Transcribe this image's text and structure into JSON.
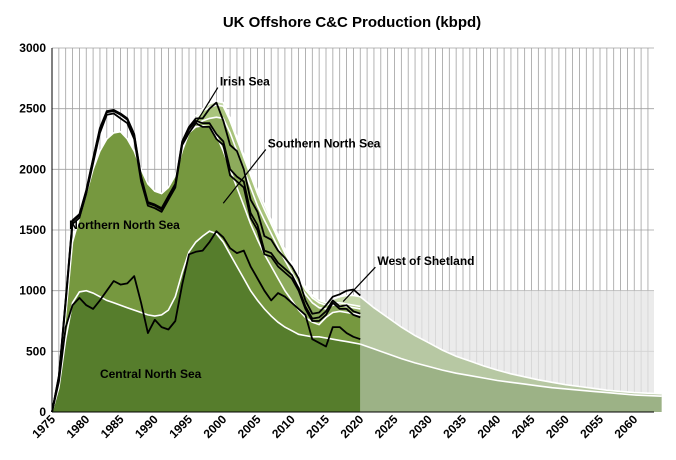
{
  "chart_data": {
    "type": "area",
    "title": "UK Offshore C&C Production (kbpd)",
    "xlabel": "",
    "ylabel": "",
    "xlim": [
      1975,
      2064
    ],
    "ylim": [
      0,
      3000
    ],
    "x_ticks": [
      1975,
      1980,
      1985,
      1990,
      1995,
      2000,
      2005,
      2010,
      2015,
      2020,
      2025,
      2030,
      2035,
      2040,
      2045,
      2050,
      2055,
      2060
    ],
    "y_ticks": [
      0,
      500,
      1000,
      1500,
      2000,
      2500,
      3000
    ],
    "grid": true,
    "forecast_band": {
      "x": [
        2020,
        2064
      ],
      "y": [
        0,
        1000
      ]
    },
    "colors": {
      "central_north_sea": "#567d2c",
      "northern_north_sea": "#76983f",
      "southern_north_sea": "#8dab5c",
      "irish_sea": "#a9c47c",
      "west_of_shetland": "#c5d8a9",
      "forecast_central": "#9cb286",
      "forecast_total": "#b7c8a3",
      "forecast_band": "#e4e4e4",
      "grid": "#a0a0a0"
    },
    "series": [
      {
        "name": "Central North Sea",
        "x": [
          1975,
          1976,
          1977,
          1978,
          1979,
          1980,
          1981,
          1982,
          1983,
          1984,
          1985,
          1986,
          1987,
          1988,
          1989,
          1990,
          1991,
          1992,
          1993,
          1994,
          1995,
          1996,
          1997,
          1998,
          1999,
          2000,
          2001,
          2002,
          2003,
          2004,
          2005,
          2006,
          2007,
          2008,
          2009,
          2010,
          2011,
          2012,
          2013,
          2014,
          2015,
          2016,
          2017,
          2018,
          2019,
          2020
        ],
        "y": [
          0,
          200,
          600,
          900,
          990,
          1000,
          980,
          950,
          920,
          900,
          880,
          860,
          840,
          820,
          800,
          790,
          800,
          840,
          950,
          1150,
          1320,
          1400,
          1450,
          1490,
          1470,
          1400,
          1300,
          1200,
          1100,
          1000,
          920,
          850,
          790,
          740,
          700,
          670,
          640,
          630,
          620,
          620,
          610,
          600,
          590,
          580,
          570,
          560
        ]
      },
      {
        "name": "Northern North Sea",
        "x": [
          1975,
          1976,
          1977,
          1978,
          1979,
          1980,
          1981,
          1982,
          1983,
          1984,
          1985,
          1986,
          1987,
          1988,
          1989,
          1990,
          1991,
          1992,
          1993,
          1994,
          1995,
          1996,
          1997,
          1998,
          1999,
          2000,
          2001,
          2002,
          2003,
          2004,
          2005,
          2006,
          2007,
          2008,
          2009,
          2010,
          2011,
          2012,
          2013,
          2014,
          2015,
          2016,
          2017,
          2018,
          2019,
          2020
        ],
        "y": [
          0,
          250,
          800,
          1400,
          1600,
          1800,
          2000,
          2150,
          2250,
          2300,
          2310,
          2250,
          2150,
          2000,
          1880,
          1820,
          1800,
          1850,
          1950,
          2150,
          2300,
          2350,
          2360,
          2350,
          2280,
          2150,
          2000,
          1850,
          1700,
          1550,
          1420,
          1300,
          1200,
          1100,
          1000,
          920,
          840,
          780,
          740,
          720,
          780,
          820,
          830,
          820,
          810,
          800
        ]
      },
      {
        "name": "Southern North Sea",
        "x": [
          1996,
          1997,
          1998,
          1999,
          2000,
          2001,
          2002,
          2003,
          2004,
          2005,
          2006,
          2007,
          2008,
          2009,
          2010,
          2011,
          2012,
          2013,
          2014,
          2015,
          2016,
          2017,
          2018,
          2019,
          2020
        ],
        "y": [
          2370,
          2400,
          2420,
          2430,
          2420,
          2300,
          2150,
          2000,
          1850,
          1700,
          1580,
          1470,
          1360,
          1250,
          1150,
          1050,
          970,
          900,
          860,
          850,
          880,
          880,
          870,
          860,
          850
        ]
      },
      {
        "name": "Irish Sea",
        "x": [
          1996,
          1997,
          1998,
          1999,
          2000,
          2001,
          2002,
          2003,
          2004,
          2005,
          2006,
          2007,
          2008,
          2009,
          2010,
          2011,
          2012,
          2013,
          2014,
          2015,
          2016,
          2017,
          2018,
          2019,
          2020
        ],
        "y": [
          2420,
          2480,
          2510,
          2530,
          2520,
          2400,
          2250,
          2100,
          1950,
          1800,
          1670,
          1550,
          1430,
          1310,
          1210,
          1100,
          1010,
          940,
          900,
          880,
          900,
          900,
          890,
          880,
          870
        ]
      },
      {
        "name": "West of Shetland",
        "x": [
          1996,
          1997,
          1998,
          1999,
          2000,
          2001,
          2002,
          2003,
          2004,
          2005,
          2006,
          2007,
          2008,
          2009,
          2010,
          2011,
          2012,
          2013,
          2014,
          2015,
          2016,
          2017,
          2018,
          2019,
          2020
        ],
        "y": [
          2440,
          2500,
          2540,
          2560,
          2550,
          2420,
          2270,
          2120,
          1970,
          1830,
          1710,
          1580,
          1460,
          1340,
          1230,
          1120,
          1030,
          960,
          920,
          900,
          930,
          950,
          960,
          960,
          950
        ]
      }
    ],
    "forecast": {
      "x": [
        2020,
        2022,
        2024,
        2026,
        2028,
        2030,
        2032,
        2034,
        2036,
        2038,
        2040,
        2042,
        2044,
        2046,
        2048,
        2050,
        2052,
        2054,
        2056,
        2058,
        2060,
        2062,
        2064
      ],
      "central_y": [
        560,
        520,
        480,
        440,
        405,
        375,
        345,
        320,
        300,
        280,
        260,
        245,
        230,
        215,
        200,
        190,
        180,
        170,
        160,
        150,
        140,
        135,
        130
      ],
      "total_y": [
        950,
        860,
        780,
        700,
        630,
        570,
        510,
        460,
        420,
        380,
        345,
        315,
        290,
        265,
        245,
        225,
        210,
        195,
        180,
        170,
        160,
        155,
        150
      ]
    },
    "actuals": [
      {
        "series": "Central North Sea",
        "x": [
          1975,
          1976,
          1977,
          1978,
          1979,
          1980,
          1981,
          1982,
          1983,
          1984,
          1985,
          1986,
          1987,
          1988,
          1989,
          1990,
          1991,
          1992,
          1993,
          1994,
          1995,
          1996,
          1997,
          1998,
          1999,
          2000,
          2001,
          2002,
          2003,
          2004,
          2005,
          2006,
          2007,
          2008,
          2009,
          2010,
          2011,
          2012,
          2013,
          2014,
          2015,
          2016,
          2017,
          2018,
          2019,
          2020
        ],
        "y": [
          0,
          250,
          700,
          880,
          940,
          880,
          850,
          920,
          1000,
          1080,
          1050,
          1060,
          1120,
          900,
          650,
          760,
          700,
          680,
          750,
          1050,
          1300,
          1320,
          1330,
          1400,
          1490,
          1440,
          1350,
          1310,
          1330,
          1200,
          1100,
          1000,
          920,
          980,
          950,
          900,
          850,
          800,
          600,
          570,
          540,
          700,
          700,
          650,
          620,
          600
        ]
      },
      {
        "series": "Northern North Sea",
        "x": [
          1975,
          1976,
          1977,
          1978,
          1979,
          1980,
          1981,
          1982,
          1983,
          1984,
          1985,
          1986,
          1987,
          1988,
          1989,
          1990,
          1991,
          1992,
          1993,
          1994,
          1995,
          1996,
          1997,
          1998,
          1999,
          2000,
          2001,
          2002,
          2003,
          2004,
          2005,
          2006,
          2007,
          2008,
          2009,
          2010,
          2011,
          2012,
          2013,
          2014,
          2015,
          2016,
          2017,
          2018,
          2019,
          2020
        ],
        "y": [
          0,
          280,
          900,
          1550,
          1600,
          1800,
          2050,
          2300,
          2450,
          2460,
          2420,
          2380,
          2250,
          1900,
          1700,
          1680,
          1650,
          1750,
          1850,
          2200,
          2300,
          2380,
          2350,
          2350,
          2250,
          2200,
          1950,
          1900,
          1850,
          1600,
          1500,
          1300,
          1280,
          1200,
          1150,
          1100,
          1000,
          850,
          750,
          750,
          800,
          900,
          850,
          850,
          800,
          780
        ]
      },
      {
        "series": "Southern North Sea",
        "x": [
          1975,
          1976,
          1977,
          1978,
          1979,
          1980,
          1981,
          1982,
          1983,
          1984,
          1985,
          1986,
          1987,
          1988,
          1989,
          1990,
          1991,
          1992,
          1993,
          1994,
          1995,
          1996,
          1997,
          1998,
          1999,
          2000,
          2001,
          2002,
          2003,
          2004,
          2005,
          2006,
          2007,
          2008,
          2009,
          2010,
          2011,
          2012,
          2013,
          2014,
          2015,
          2016,
          2017,
          2018,
          2019,
          2020
        ],
        "y": [
          0,
          290,
          920,
          1570,
          1620,
          1820,
          2080,
          2330,
          2470,
          2480,
          2450,
          2410,
          2280,
          1930,
          1720,
          1700,
          1670,
          1770,
          1870,
          2220,
          2330,
          2400,
          2380,
          2380,
          2290,
          2230,
          2000,
          1940,
          1900,
          1640,
          1540,
          1330,
          1310,
          1230,
          1180,
          1130,
          1020,
          870,
          770,
          780,
          830,
          920,
          870,
          880,
          830,
          810
        ]
      },
      {
        "series": "Irish Sea",
        "x": [
          1975,
          1976,
          1977,
          1978,
          1979,
          1980,
          1981,
          1982,
          1983,
          1984,
          1985,
          1986,
          1987,
          1988,
          1989,
          1990,
          1991,
          1992,
          1993,
          1994,
          1995,
          1996,
          1997,
          1998,
          1999,
          2000,
          2001,
          2002,
          2003,
          2004,
          2005,
          2006,
          2007,
          2008,
          2009,
          2010,
          2011,
          2012,
          2013,
          2014,
          2015,
          2016,
          2017,
          2018,
          2019,
          2020
        ],
        "y": [
          0,
          300,
          930,
          1580,
          1630,
          1830,
          2090,
          2340,
          2480,
          2490,
          2460,
          2420,
          2290,
          1940,
          1730,
          1710,
          1680,
          1780,
          1880,
          2230,
          2350,
          2420,
          2420,
          2500,
          2550,
          2400,
          2200,
          2150,
          2000,
          1750,
          1650,
          1450,
          1420,
          1330,
          1270,
          1200,
          1100,
          920,
          810,
          820,
          880,
          950,
          970,
          1000,
          1010,
          960
        ]
      }
    ],
    "annotations": [
      {
        "text": "Irish Sea",
        "series": "Irish Sea",
        "label_x": 1999.5,
        "label_y": 2690,
        "point_x": 1996,
        "point_y": 2380
      },
      {
        "text": "Southern North Sea",
        "series": "Southern North Sea",
        "label_x": 2006.5,
        "label_y": 2180,
        "point_x": 2000,
        "point_y": 1720
      },
      {
        "text": "Northern North Sea",
        "series": "Northern North Sea",
        "label_x": 1977.5,
        "label_y": 1510,
        "point_x": null,
        "point_y": null
      },
      {
        "text": "West of Shetland",
        "series": "West of Shetland",
        "label_x": 2022.5,
        "label_y": 1210,
        "point_x": 2017.5,
        "point_y": 910
      },
      {
        "text": "Central North Sea",
        "series": "Central North Sea",
        "label_x": 1982,
        "label_y": 280,
        "point_x": null,
        "point_y": null
      }
    ]
  }
}
